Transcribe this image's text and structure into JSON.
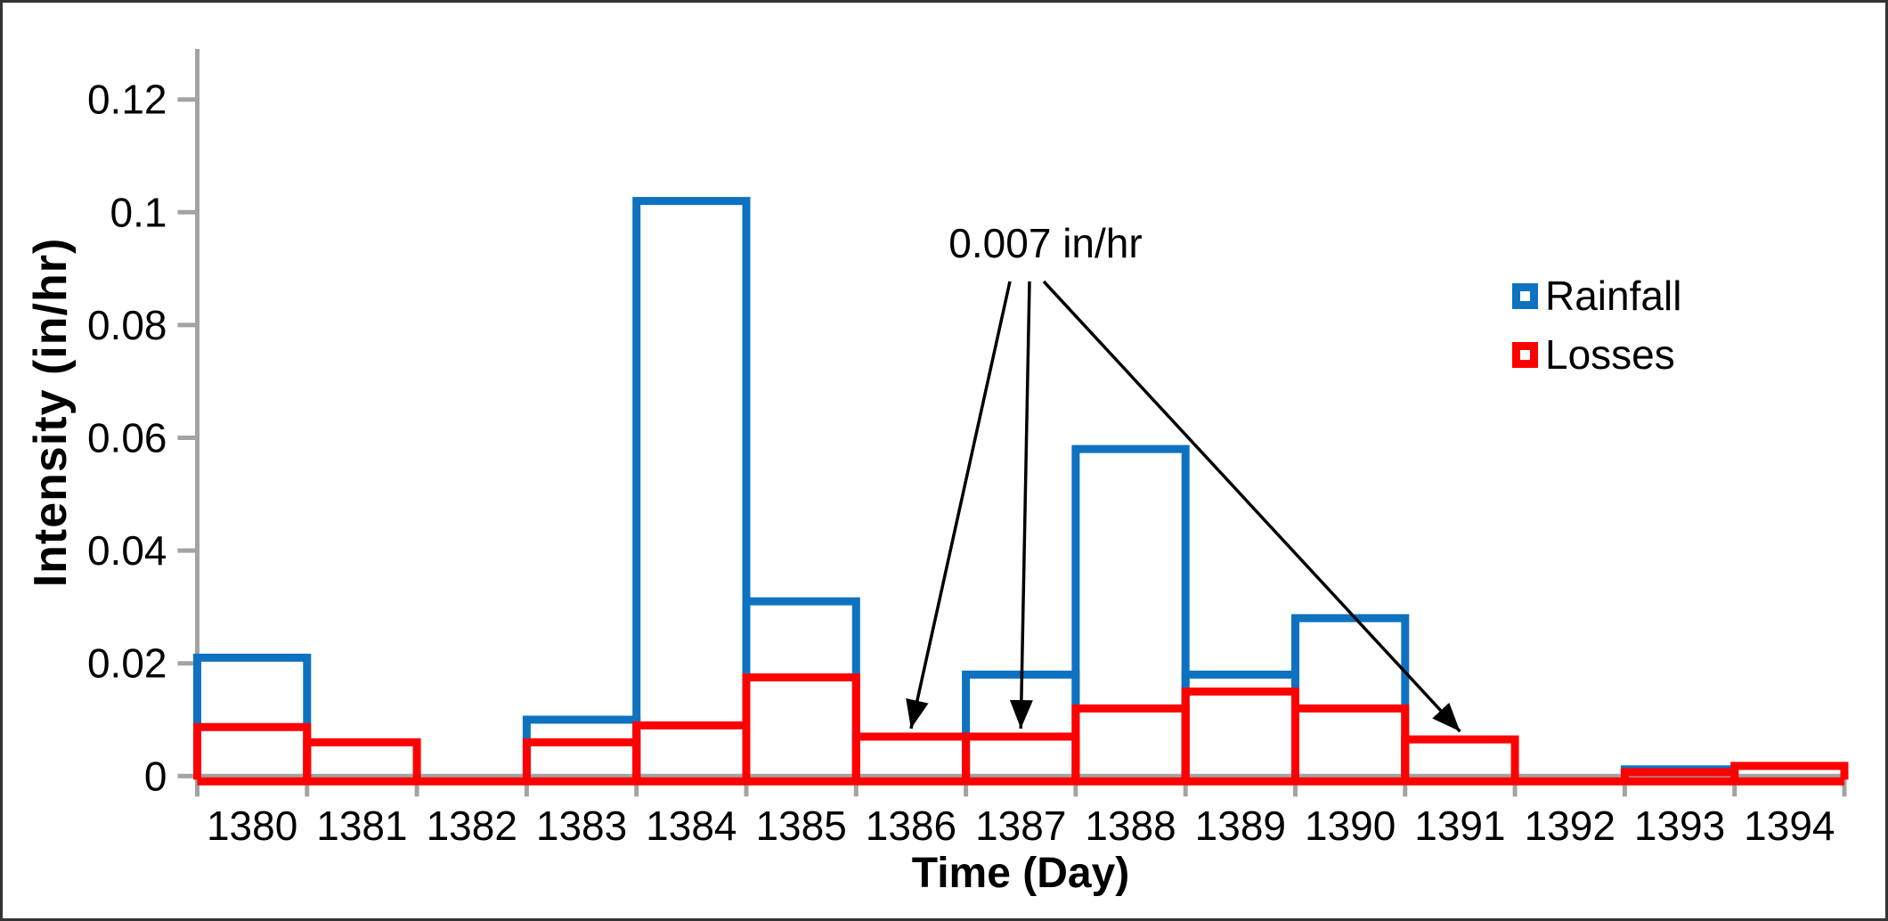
{
  "chart_data": {
    "type": "bar",
    "subtype": "outlined-histogram-overlay",
    "title": "",
    "xlabel": "Time (Day)",
    "ylabel": "Intensity (in/hr)",
    "categories": [
      "1380",
      "1381",
      "1382",
      "1383",
      "1384",
      "1385",
      "1386",
      "1387",
      "1388",
      "1389",
      "1390",
      "1391",
      "1392",
      "1393",
      "1394"
    ],
    "series": [
      {
        "name": "Rainfall",
        "color": "#0e72c0",
        "values": [
          0.021,
          0,
          0,
          0.01,
          0.102,
          0.031,
          0,
          0.018,
          0.058,
          0.018,
          0.028,
          0,
          0,
          0.0012,
          0
        ]
      },
      {
        "name": "Losses",
        "color": "#ff0000",
        "values": [
          0.0087,
          0.006,
          0,
          0.006,
          0.009,
          0.0175,
          0.007,
          0.007,
          0.012,
          0.015,
          0.012,
          0.0065,
          0,
          0.0007,
          0.0018
        ]
      }
    ],
    "ylim": [
      0,
      0.129
    ],
    "yticks": {
      "values": [
        0,
        0.02,
        0.04,
        0.06,
        0.08,
        0.1,
        0.12
      ],
      "labels": [
        "0",
        "0.02",
        "0.04",
        "0.06",
        "0.08",
        "0.1",
        "0.12"
      ]
    },
    "grid": false,
    "legend_position": "upper-right-inside",
    "annotation": {
      "text": "0.007 in/hr",
      "series": "Losses",
      "targets": [
        "1386",
        "1387",
        "1391"
      ]
    },
    "style": {
      "axis_color": "#a3a3a3",
      "text_color": "#000000",
      "arrow_color": "#000000"
    }
  }
}
